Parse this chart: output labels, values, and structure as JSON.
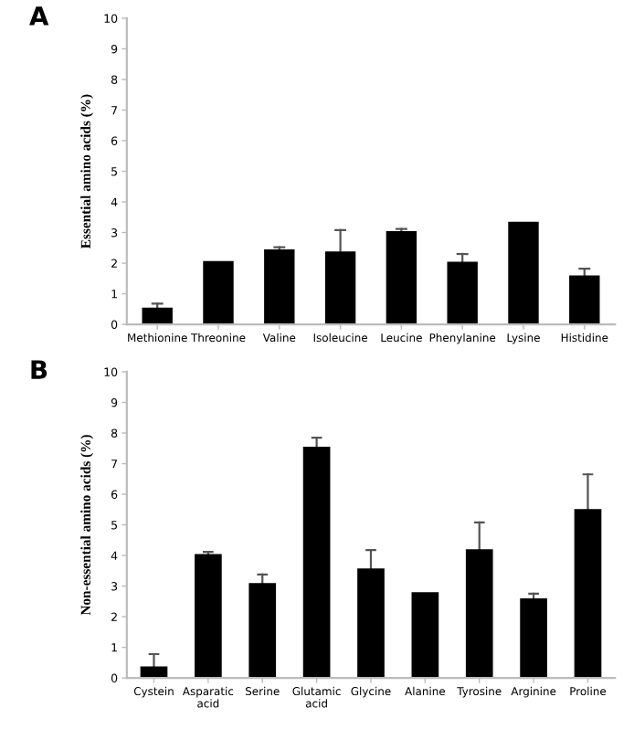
{
  "chart_data": [
    {
      "type": "bar",
      "title": "A",
      "ylabel": "Essential amino acids (%)",
      "categories": [
        "Methionine",
        "Threonine",
        "Valine",
        "Isoleucine",
        "Leucine",
        "Phenylanine",
        "Lysine",
        "Histidine"
      ],
      "values": [
        0.55,
        2.07,
        2.45,
        2.38,
        3.05,
        2.05,
        3.35,
        1.6
      ],
      "errors": [
        [
          0.55,
          0.68
        ],
        null,
        [
          2.45,
          2.52
        ],
        [
          2.38,
          3.08
        ],
        [
          3.05,
          3.12
        ],
        [
          2.05,
          2.3
        ],
        null,
        [
          1.6,
          1.82
        ]
      ],
      "color": "#000000",
      "ylim": [
        0,
        10
      ],
      "yticks": [
        0,
        1,
        2,
        3,
        4,
        5,
        6,
        7,
        8,
        9,
        10
      ],
      "grid": false
    },
    {
      "type": "bar",
      "title": "B",
      "ylabel": "Non-essential amino acids (%)",
      "categories": [
        "Cystein",
        "Asparatic\nacid",
        "Serine",
        "Glutamic\nacid",
        "Glycine",
        "Alanine",
        "Tyrosine",
        "Arginine",
        "Proline"
      ],
      "values": [
        0.38,
        4.05,
        3.1,
        7.55,
        3.58,
        2.8,
        4.2,
        2.6,
        5.52
      ],
      "errors": [
        [
          0.38,
          0.78
        ],
        [
          4.05,
          4.12
        ],
        [
          3.1,
          3.38
        ],
        [
          7.55,
          7.85
        ],
        [
          3.58,
          4.18
        ],
        null,
        [
          4.2,
          5.08
        ],
        [
          2.6,
          2.75
        ],
        [
          5.52,
          6.65
        ]
      ],
      "color": "#000000",
      "ylim": [
        0,
        10
      ],
      "yticks": [
        0,
        1,
        2,
        3,
        4,
        5,
        6,
        7,
        8,
        9,
        10
      ],
      "grid": false
    }
  ]
}
